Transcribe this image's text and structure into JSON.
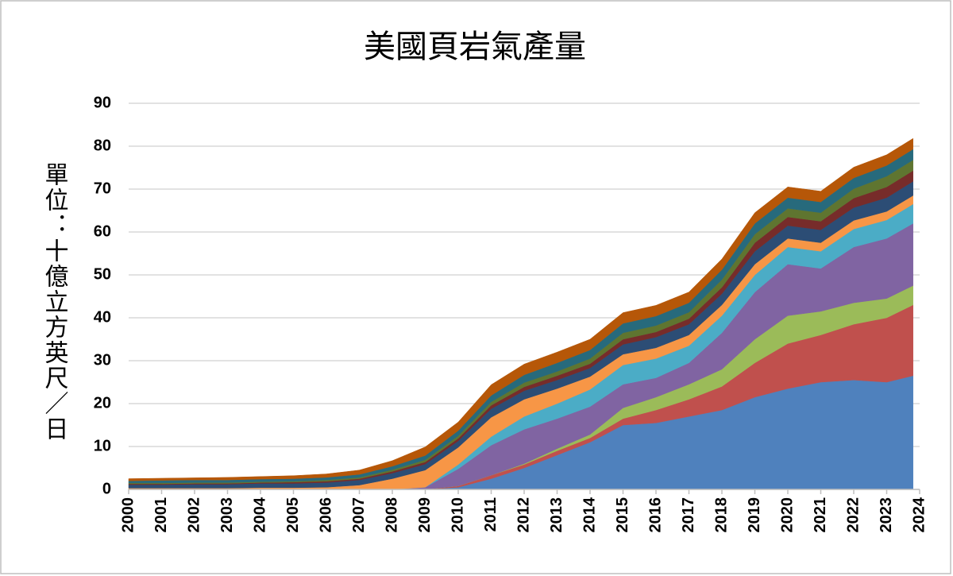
{
  "chart_data": {
    "type": "stacked-area",
    "title": "美國頁岩氣產量",
    "y_label": "單位：十億立方英尺／日",
    "x": [
      2000,
      2001,
      2002,
      2003,
      2004,
      2005,
      2006,
      2007,
      2008,
      2009,
      2010,
      2011,
      2012,
      2013,
      2014,
      2015,
      2016,
      2017,
      2018,
      2019,
      2020,
      2021,
      2022,
      2023,
      2023.8
    ],
    "xlim": [
      2000,
      2024
    ],
    "xticks": [
      2000,
      2001,
      2002,
      2003,
      2004,
      2005,
      2006,
      2007,
      2008,
      2009,
      2010,
      2011,
      2012,
      2013,
      2014,
      2015,
      2016,
      2017,
      2018,
      2019,
      2020,
      2021,
      2022,
      2023,
      2024
    ],
    "ylim": [
      0,
      90
    ],
    "yticks": [
      0,
      10,
      20,
      30,
      40,
      50,
      60,
      70,
      80,
      90
    ],
    "grid": true,
    "series": [
      {
        "color": "#4f81bd",
        "values": [
          0,
          0,
          0,
          0,
          0,
          0,
          0,
          0,
          0,
          0,
          0.5,
          2.5,
          5,
          8,
          11,
          15,
          15.5,
          17,
          18.5,
          21.5,
          23.5,
          25,
          25.5,
          25,
          26.5
        ]
      },
      {
        "color": "#c0504d",
        "values": [
          0,
          0,
          0,
          0,
          0,
          0,
          0,
          0,
          0,
          0,
          0.3,
          0.8,
          0.8,
          1,
          1,
          1.5,
          3,
          4,
          5.5,
          8,
          10.5,
          11,
          13,
          15,
          16.5
        ]
      },
      {
        "color": "#9bbb59",
        "values": [
          0,
          0,
          0,
          0,
          0,
          0,
          0,
          0,
          0,
          0,
          0,
          0,
          0.2,
          0.5,
          0.8,
          2.5,
          3,
          3.5,
          4,
          5.5,
          6.5,
          5.5,
          5,
          4.5,
          4.5
        ]
      },
      {
        "color": "#8064a2",
        "values": [
          0,
          0,
          0,
          0,
          0,
          0,
          0,
          0,
          0,
          0.5,
          4,
          7,
          8,
          7,
          6.5,
          5.5,
          4.5,
          5,
          8.5,
          11,
          12,
          10,
          13,
          14,
          14.5
        ]
      },
      {
        "color": "#4bacc6",
        "values": [
          0,
          0,
          0,
          0,
          0,
          0,
          0,
          0,
          0,
          0,
          1,
          2,
          3,
          3.5,
          4,
          4.5,
          4.5,
          4,
          4,
          4,
          4,
          4,
          4.2,
          4.3,
          4.5
        ]
      },
      {
        "color": "#f79646",
        "values": [
          0.3,
          0.3,
          0.3,
          0.3,
          0.4,
          0.4,
          0.5,
          1,
          2.5,
          4,
          4,
          4.5,
          4,
          3.5,
          3,
          2.5,
          2.5,
          2.5,
          2.5,
          2.5,
          2,
          2,
          2,
          2,
          2
        ]
      },
      {
        "color": "#2c4d75",
        "values": [
          0.8,
          0.8,
          0.9,
          0.9,
          1,
          1,
          1.1,
          1.2,
          1.3,
          1.4,
          1.5,
          2,
          2,
          2,
          2,
          2.3,
          2.5,
          2.5,
          2.6,
          3,
          3,
          3,
          3,
          3.2,
          3.3
        ]
      },
      {
        "color": "#772c2a",
        "values": [
          0.2,
          0.2,
          0.2,
          0.2,
          0.2,
          0.3,
          0.3,
          0.3,
          0.4,
          0.5,
          0.6,
          0.8,
          0.9,
          1,
          1,
          1.2,
          1.2,
          1.3,
          1.5,
          2,
          2,
          2,
          2.2,
          2.5,
          2.5
        ]
      },
      {
        "color": "#5f7530",
        "values": [
          0.2,
          0.2,
          0.2,
          0.2,
          0.2,
          0.2,
          0.3,
          0.3,
          0.4,
          0.5,
          0.6,
          0.8,
          1,
          1,
          1.2,
          1.5,
          1.5,
          1.5,
          1.8,
          2,
          2,
          2,
          2.2,
          2.5,
          2.5
        ]
      },
      {
        "color": "#276a7c",
        "values": [
          0.5,
          0.6,
          0.6,
          0.6,
          0.6,
          0.6,
          0.6,
          0.7,
          0.8,
          1,
          1.2,
          1.5,
          1.8,
          2,
          2,
          2.2,
          2.2,
          2.2,
          2.3,
          2.5,
          2.5,
          2.5,
          2.5,
          2.5,
          2.5
        ]
      },
      {
        "color": "#b65708",
        "values": [
          0.5,
          0.5,
          0.5,
          0.6,
          0.6,
          0.7,
          0.8,
          1,
          1.3,
          2,
          2,
          2.5,
          2.5,
          2.5,
          2.5,
          2.5,
          2.5,
          2.5,
          2.5,
          2.5,
          2.5,
          2.5,
          2.5,
          2.5,
          2.5
        ]
      }
    ]
  }
}
